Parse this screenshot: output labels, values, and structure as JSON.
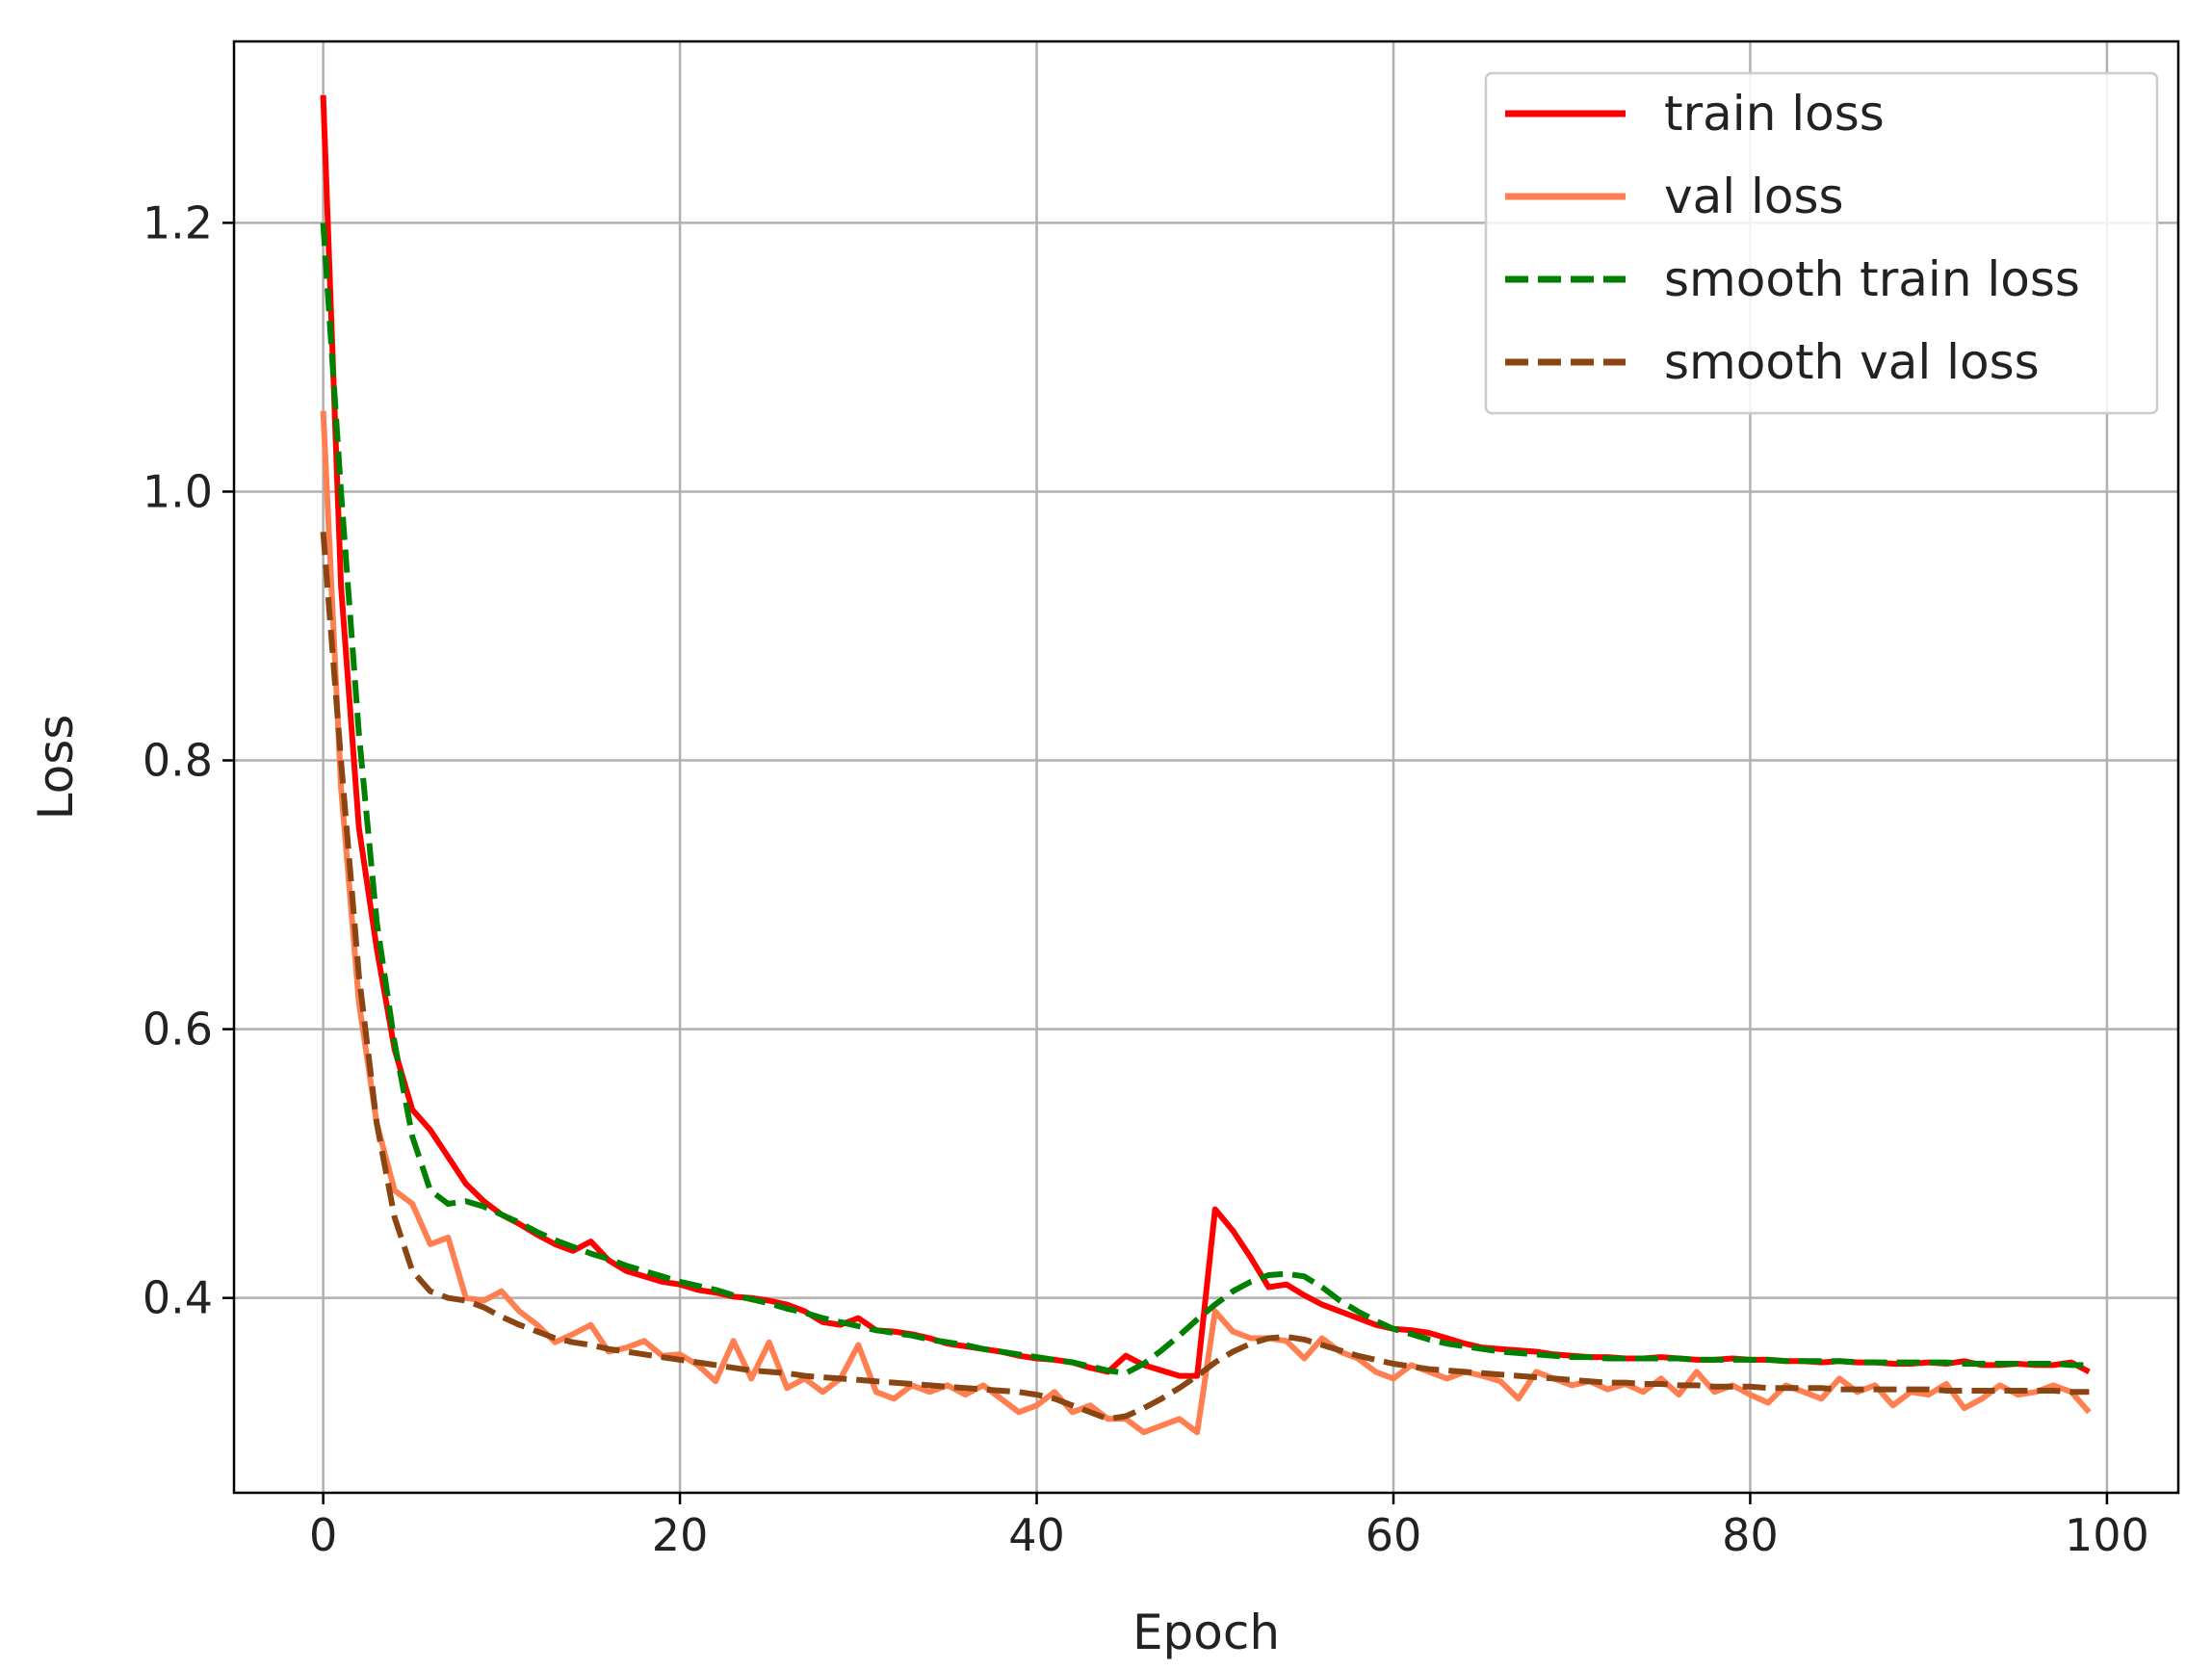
{
  "chart_data": {
    "type": "line",
    "title": "",
    "xlabel": "Epoch",
    "ylabel": "Loss",
    "xlim": [
      -5,
      104
    ],
    "ylim": [
      0.255,
      1.335
    ],
    "xticks": [
      0,
      20,
      40,
      60,
      80,
      100
    ],
    "xtick_labels": [
      "0",
      "20",
      "40",
      "60",
      "80",
      "100"
    ],
    "yticks": [
      0.4,
      0.6,
      0.8,
      1.0,
      1.2
    ],
    "ytick_labels": [
      "0.4",
      "0.6",
      "0.8",
      "1.0",
      "1.2"
    ],
    "grid": true,
    "legend_position": "top-right",
    "series": [
      {
        "name": "train loss",
        "color": "#ff0000",
        "dash": "solid",
        "values": [
          1.295,
          0.93,
          0.75,
          0.66,
          0.585,
          0.54,
          0.525,
          0.505,
          0.485,
          0.472,
          0.462,
          0.455,
          0.447,
          0.44,
          0.435,
          0.442,
          0.428,
          0.42,
          0.416,
          0.412,
          0.41,
          0.406,
          0.404,
          0.401,
          0.4,
          0.398,
          0.395,
          0.39,
          0.382,
          0.38,
          0.385,
          0.376,
          0.375,
          0.373,
          0.37,
          0.366,
          0.364,
          0.362,
          0.36,
          0.357,
          0.355,
          0.354,
          0.352,
          0.348,
          0.345,
          0.357,
          0.35,
          0.346,
          0.342,
          0.342,
          0.466,
          0.45,
          0.43,
          0.408,
          0.41,
          0.402,
          0.395,
          0.39,
          0.385,
          0.38,
          0.377,
          0.376,
          0.374,
          0.37,
          0.366,
          0.363,
          0.362,
          0.361,
          0.36,
          0.358,
          0.357,
          0.356,
          0.356,
          0.355,
          0.355,
          0.356,
          0.355,
          0.354,
          0.354,
          0.355,
          0.354,
          0.354,
          0.353,
          0.353,
          0.352,
          0.353,
          0.352,
          0.352,
          0.351,
          0.351,
          0.352,
          0.351,
          0.353,
          0.35,
          0.35,
          0.351,
          0.35,
          0.35,
          0.352,
          0.345
        ]
      },
      {
        "name": "val loss",
        "color": "#ff7f50",
        "dash": "solid",
        "values": [
          1.06,
          0.78,
          0.62,
          0.53,
          0.48,
          0.47,
          0.44,
          0.445,
          0.4,
          0.398,
          0.405,
          0.39,
          0.38,
          0.367,
          0.373,
          0.38,
          0.36,
          0.363,
          0.368,
          0.357,
          0.358,
          0.35,
          0.338,
          0.368,
          0.34,
          0.367,
          0.333,
          0.34,
          0.33,
          0.34,
          0.365,
          0.33,
          0.325,
          0.335,
          0.33,
          0.335,
          0.328,
          0.335,
          0.325,
          0.315,
          0.32,
          0.33,
          0.315,
          0.32,
          0.31,
          0.31,
          0.3,
          0.305,
          0.31,
          0.3,
          0.39,
          0.375,
          0.37,
          0.37,
          0.368,
          0.355,
          0.37,
          0.36,
          0.355,
          0.345,
          0.34,
          0.35,
          0.345,
          0.34,
          0.345,
          0.342,
          0.338,
          0.325,
          0.345,
          0.34,
          0.335,
          0.338,
          0.332,
          0.336,
          0.33,
          0.34,
          0.328,
          0.345,
          0.33,
          0.335,
          0.328,
          0.322,
          0.335,
          0.33,
          0.325,
          0.34,
          0.33,
          0.335,
          0.32,
          0.33,
          0.328,
          0.336,
          0.318,
          0.325,
          0.335,
          0.328,
          0.33,
          0.335,
          0.33,
          0.315
        ]
      },
      {
        "name": "smooth train loss",
        "color": "#008000",
        "dash": "dashed",
        "values": [
          1.2,
          1.0,
          0.82,
          0.68,
          0.59,
          0.52,
          0.48,
          0.47,
          0.472,
          0.468,
          0.462,
          0.456,
          0.449,
          0.443,
          0.438,
          0.433,
          0.429,
          0.424,
          0.42,
          0.416,
          0.412,
          0.409,
          0.406,
          0.402,
          0.399,
          0.396,
          0.392,
          0.389,
          0.385,
          0.382,
          0.379,
          0.376,
          0.374,
          0.372,
          0.369,
          0.367,
          0.365,
          0.362,
          0.36,
          0.358,
          0.356,
          0.354,
          0.352,
          0.349,
          0.346,
          0.344,
          0.351,
          0.361,
          0.372,
          0.384,
          0.395,
          0.405,
          0.412,
          0.417,
          0.418,
          0.416,
          0.408,
          0.398,
          0.39,
          0.383,
          0.377,
          0.373,
          0.369,
          0.366,
          0.364,
          0.362,
          0.36,
          0.359,
          0.358,
          0.357,
          0.356,
          0.356,
          0.355,
          0.355,
          0.355,
          0.355,
          0.355,
          0.354,
          0.354,
          0.354,
          0.354,
          0.354,
          0.353,
          0.353,
          0.353,
          0.353,
          0.352,
          0.352,
          0.352,
          0.352,
          0.352,
          0.352,
          0.351,
          0.351,
          0.351,
          0.351,
          0.351,
          0.351,
          0.35,
          0.35
        ]
      },
      {
        "name": "smooth val loss",
        "color": "#8b4513",
        "dash": "dashed",
        "values": [
          0.97,
          0.8,
          0.64,
          0.53,
          0.46,
          0.42,
          0.405,
          0.4,
          0.398,
          0.393,
          0.386,
          0.38,
          0.375,
          0.37,
          0.367,
          0.365,
          0.362,
          0.36,
          0.358,
          0.356,
          0.354,
          0.352,
          0.35,
          0.348,
          0.346,
          0.345,
          0.344,
          0.342,
          0.341,
          0.34,
          0.339,
          0.338,
          0.337,
          0.336,
          0.335,
          0.334,
          0.333,
          0.332,
          0.331,
          0.33,
          0.328,
          0.325,
          0.32,
          0.315,
          0.31,
          0.312,
          0.318,
          0.325,
          0.333,
          0.342,
          0.352,
          0.36,
          0.366,
          0.37,
          0.371,
          0.369,
          0.365,
          0.361,
          0.357,
          0.354,
          0.351,
          0.349,
          0.347,
          0.346,
          0.345,
          0.344,
          0.343,
          0.342,
          0.341,
          0.34,
          0.339,
          0.338,
          0.337,
          0.337,
          0.336,
          0.336,
          0.335,
          0.335,
          0.334,
          0.334,
          0.334,
          0.333,
          0.333,
          0.333,
          0.333,
          0.332,
          0.332,
          0.332,
          0.332,
          0.332,
          0.332,
          0.331,
          0.331,
          0.331,
          0.331,
          0.331,
          0.331,
          0.331,
          0.33,
          0.33
        ]
      }
    ]
  }
}
